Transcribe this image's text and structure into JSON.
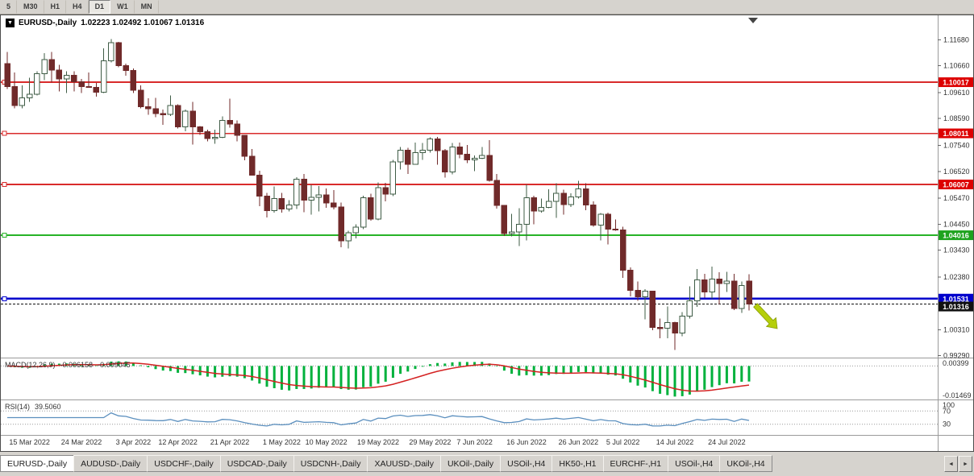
{
  "toolbar": {
    "timeframes": [
      {
        "label": "5",
        "active": false
      },
      {
        "label": "M30",
        "active": false
      },
      {
        "label": "H1",
        "active": false
      },
      {
        "label": "H4",
        "active": false
      },
      {
        "label": "D1",
        "active": true
      },
      {
        "label": "W1",
        "active": false
      },
      {
        "label": "MN",
        "active": false
      }
    ]
  },
  "chart": {
    "symbol_label": "EURUSD-,Daily",
    "ohlc_label": "1.02223 1.02492 1.01067 1.01316",
    "dropdown_icon": "▼"
  },
  "chart_data": {
    "type": "candlestick",
    "symbol": "EURUSD-,Daily",
    "price_axis_ticks": [
      "1.11680",
      "1.10660",
      "1.09610",
      "1.08590",
      "1.07540",
      "1.06520",
      "1.05470",
      "1.04450",
      "1.03430",
      "1.02380",
      "1.00310",
      "0.99290"
    ],
    "x_labels": [
      {
        "i": 3,
        "text": "15 Mar 2022"
      },
      {
        "i": 10,
        "text": "24 Mar 2022"
      },
      {
        "i": 17,
        "text": "3 Apr 2022"
      },
      {
        "i": 23,
        "text": "12 Apr 2022"
      },
      {
        "i": 30,
        "text": "21 Apr 2022"
      },
      {
        "i": 37,
        "text": "1 May 2022"
      },
      {
        "i": 43,
        "text": "10 May 2022"
      },
      {
        "i": 50,
        "text": "19 May 2022"
      },
      {
        "i": 57,
        "text": "29 May 2022"
      },
      {
        "i": 63,
        "text": "7 Jun 2022"
      },
      {
        "i": 70,
        "text": "16 Jun 2022"
      },
      {
        "i": 77,
        "text": "26 Jun 2022"
      },
      {
        "i": 83,
        "text": "5 Jul 2022"
      },
      {
        "i": 90,
        "text": "14 Jul 2022"
      },
      {
        "i": 97,
        "text": "24 Jul 2022"
      }
    ],
    "hlines": [
      {
        "price": 1.10017,
        "label": "1.10017",
        "color": "#d92b2b",
        "width": 1.6
      },
      {
        "price": 1.08011,
        "label": "1.08011",
        "color": "#d92b2b",
        "width": 1.6
      },
      {
        "price": 1.06007,
        "label": "1.06007",
        "color": "#d92b2b",
        "width": 1.6
      },
      {
        "price": 1.04016,
        "label": "1.04016",
        "color": "#27b327",
        "width": 2
      },
      {
        "price": 1.01531,
        "label": "1.01531",
        "color": "#0000cc",
        "width": 2.4
      }
    ],
    "bid": {
      "price": 1.01316,
      "label": "1.01316",
      "color": "#111111"
    },
    "arrow": {
      "color": "#b5cf0a",
      "outline": "#8a9c08",
      "tail": [
        936,
        360
      ],
      "head": [
        963,
        389
      ]
    },
    "macd": {
      "name": "MACD(12,26,9)",
      "value_main": "-0.006158",
      "value_signal": "-0.009045",
      "axis_max": "0.00399",
      "axis_min": "-0.01469",
      "histogram_color": "#00b13c",
      "signal_color": "#d42121"
    },
    "rsi": {
      "name": "RSI(14)",
      "value": "39.5060",
      "levels": [
        "100",
        "70",
        "30"
      ],
      "line_color": "#5b8fbe"
    },
    "colors": {
      "bull_fill": "#ffffff",
      "bull_stroke": "#3f5c46",
      "bear_fill": "#702a2a",
      "bear_stroke": "#702a2a",
      "axis_text": "#333333",
      "separator": "#9a9a9a"
    },
    "candles": [
      [
        1.1075,
        1.112,
        1.0975,
        1.0985
      ],
      [
        1.0985,
        1.104,
        1.09,
        1.091
      ],
      [
        1.091,
        1.099,
        1.09,
        1.094
      ],
      [
        1.094,
        1.102,
        1.0925,
        1.0955
      ],
      [
        1.0955,
        1.1045,
        1.095,
        1.1035
      ],
      [
        1.1035,
        1.1115,
        1.101,
        1.109
      ],
      [
        1.109,
        1.112,
        1.1,
        1.105
      ],
      [
        1.105,
        1.107,
        1.0965,
        1.1015
      ],
      [
        1.1015,
        1.1045,
        1.096,
        1.1028
      ],
      [
        1.1028,
        1.1045,
        1.0965,
        1.1003
      ],
      [
        1.1003,
        1.1015,
        1.096,
        1.0985
      ],
      [
        1.0985,
        1.104,
        1.098,
        1.0982
      ],
      [
        1.0982,
        1.0999,
        1.0945,
        1.0963
      ],
      [
        1.0963,
        1.1135,
        1.096,
        1.1085
      ],
      [
        1.1085,
        1.1171,
        1.108,
        1.1157
      ],
      [
        1.1157,
        1.116,
        1.106,
        1.1067
      ],
      [
        1.1067,
        1.1075,
        1.1027,
        1.1048
      ],
      [
        1.1048,
        1.1055,
        1.096,
        1.097
      ],
      [
        1.097,
        1.099,
        1.09,
        1.0905
      ],
      [
        1.0905,
        1.0938,
        1.0874,
        1.0898
      ],
      [
        1.0898,
        1.094,
        1.0865,
        1.0878
      ],
      [
        1.0878,
        1.0895,
        1.0835,
        1.0876
      ],
      [
        1.0876,
        1.095,
        1.087,
        1.091
      ],
      [
        1.091,
        1.0915,
        1.0821,
        1.0827
      ],
      [
        1.0827,
        1.0895,
        1.081,
        1.0888
      ],
      [
        1.0888,
        1.0925,
        1.0757,
        1.0826
      ],
      [
        1.0826,
        1.083,
        1.0795,
        1.0808
      ],
      [
        1.0808,
        1.0815,
        1.077,
        1.0781
      ],
      [
        1.0781,
        1.0815,
        1.076,
        1.0786
      ],
      [
        1.0786,
        1.0867,
        1.0782,
        1.0852
      ],
      [
        1.0852,
        1.0937,
        1.0824,
        1.0838
      ],
      [
        1.0838,
        1.0852,
        1.077,
        1.0793
      ],
      [
        1.0793,
        1.0795,
        1.0695,
        1.0712
      ],
      [
        1.0712,
        1.074,
        1.0635,
        1.0637
      ],
      [
        1.0637,
        1.0655,
        1.0515,
        1.0555
      ],
      [
        1.0555,
        1.0568,
        1.0471,
        1.0498
      ],
      [
        1.0498,
        1.0593,
        1.049,
        1.0545
      ],
      [
        1.0545,
        1.0568,
        1.049,
        1.0505
      ],
      [
        1.0505,
        1.054,
        1.0495,
        1.052
      ],
      [
        1.052,
        1.063,
        1.0505,
        1.0622
      ],
      [
        1.0622,
        1.0642,
        1.0492,
        1.054
      ],
      [
        1.054,
        1.0599,
        1.0483,
        1.055
      ],
      [
        1.055,
        1.0595,
        1.0495,
        1.056
      ],
      [
        1.056,
        1.0585,
        1.051,
        1.0528
      ],
      [
        1.0528,
        1.0578,
        1.0503,
        1.0512
      ],
      [
        1.0512,
        1.053,
        1.0354,
        1.038
      ],
      [
        1.038,
        1.042,
        1.0349,
        1.0411
      ],
      [
        1.0411,
        1.0445,
        1.039,
        1.0434
      ],
      [
        1.0434,
        1.0557,
        1.0425,
        1.0549
      ],
      [
        1.0549,
        1.0564,
        1.0459,
        1.0465
      ],
      [
        1.0465,
        1.0608,
        1.046,
        1.0588
      ],
      [
        1.0588,
        1.0607,
        1.0535,
        1.0563
      ],
      [
        1.0563,
        1.0697,
        1.0555,
        1.069
      ],
      [
        1.069,
        1.0748,
        1.066,
        1.0735
      ],
      [
        1.0735,
        1.0745,
        1.0642,
        1.068
      ],
      [
        1.068,
        1.0765,
        1.068,
        1.0725
      ],
      [
        1.0725,
        1.0764,
        1.0697,
        1.0735
      ],
      [
        1.0735,
        1.0786,
        1.0725,
        1.0779
      ],
      [
        1.0779,
        1.0787,
        1.0678,
        1.0734
      ],
      [
        1.0734,
        1.0739,
        1.0627,
        1.065
      ],
      [
        1.065,
        1.0764,
        1.0641,
        1.0747
      ],
      [
        1.0747,
        1.0765,
        1.0704,
        1.072
      ],
      [
        1.072,
        1.0755,
        1.0684,
        1.0697
      ],
      [
        1.0697,
        1.0715,
        1.0653,
        1.0703
      ],
      [
        1.0703,
        1.0748,
        1.07,
        1.0715
      ],
      [
        1.0715,
        1.0774,
        1.0612,
        1.0617
      ],
      [
        1.0617,
        1.0642,
        1.0506,
        1.0518
      ],
      [
        1.0518,
        1.052,
        1.0399,
        1.0408
      ],
      [
        1.0408,
        1.0485,
        1.0397,
        1.0414
      ],
      [
        1.0414,
        1.0507,
        1.0359,
        1.0445
      ],
      [
        1.0445,
        1.0601,
        1.0381,
        1.0549
      ],
      [
        1.0549,
        1.0557,
        1.0445,
        1.0497
      ],
      [
        1.0497,
        1.0546,
        1.049,
        1.0511
      ],
      [
        1.0511,
        1.0582,
        1.0508,
        1.0535
      ],
      [
        1.0535,
        1.0605,
        1.0469,
        1.0566
      ],
      [
        1.0566,
        1.058,
        1.0483,
        1.0522
      ],
      [
        1.0522,
        1.0566,
        1.0512,
        1.0552
      ],
      [
        1.0552,
        1.0615,
        1.0545,
        1.0583
      ],
      [
        1.0583,
        1.0606,
        1.05,
        1.052
      ],
      [
        1.052,
        1.0535,
        1.0435,
        1.0442
      ],
      [
        1.0442,
        1.0488,
        1.0381,
        1.0484
      ],
      [
        1.0484,
        1.049,
        1.0365,
        1.0426
      ],
      [
        1.0426,
        1.0463,
        1.042,
        1.0423
      ],
      [
        1.0423,
        1.0435,
        1.0235,
        1.0265
      ],
      [
        1.0265,
        1.0275,
        1.0162,
        1.0185
      ],
      [
        1.0185,
        1.022,
        1.0145,
        1.016
      ],
      [
        1.016,
        1.019,
        1.0072,
        1.0183
      ],
      [
        1.0183,
        1.0184,
        1.003,
        1.004
      ],
      [
        1.004,
        1.0075,
        0.9998,
        1.0037
      ],
      [
        1.0037,
        1.0122,
        0.9998,
        1.006
      ],
      [
        1.006,
        1.0062,
        0.9952,
        1.0018
      ],
      [
        1.0018,
        1.01,
        1.0005,
        1.0085
      ],
      [
        1.0085,
        1.0201,
        1.0075,
        1.0145
      ],
      [
        1.0145,
        1.0269,
        1.0121,
        1.0227
      ],
      [
        1.0227,
        1.025,
        1.0157,
        1.018
      ],
      [
        1.018,
        1.0279,
        1.0153,
        1.0229
      ],
      [
        1.0229,
        1.0257,
        1.0131,
        1.0212
      ],
      [
        1.0212,
        1.0258,
        1.018,
        1.0222
      ],
      [
        1.0222,
        1.025,
        1.0108,
        1.0115
      ],
      [
        1.0115,
        1.022,
        1.0097,
        1.0205
      ],
      [
        1.02223,
        1.02492,
        1.01067,
        1.01316
      ]
    ]
  },
  "tabs": {
    "scroll_left": "◄",
    "scroll_right": "►",
    "items": [
      {
        "label": "EURUSD-,Daily",
        "active": true
      },
      {
        "label": "AUDUSD-,Daily",
        "active": false
      },
      {
        "label": "USDCHF-,Daily",
        "active": false
      },
      {
        "label": "USDCAD-,Daily",
        "active": false
      },
      {
        "label": "USDCNH-,Daily",
        "active": false
      },
      {
        "label": "XAUUSD-,Daily",
        "active": false
      },
      {
        "label": "UKOil-,Daily",
        "active": false
      },
      {
        "label": "USOil-,H4",
        "active": false
      },
      {
        "label": "HK50-,H1",
        "active": false
      },
      {
        "label": "EURCHF-,H1",
        "active": false
      },
      {
        "label": "USOil-,H4",
        "active": false
      },
      {
        "label": "UKOil-,H4",
        "active": false
      }
    ]
  }
}
